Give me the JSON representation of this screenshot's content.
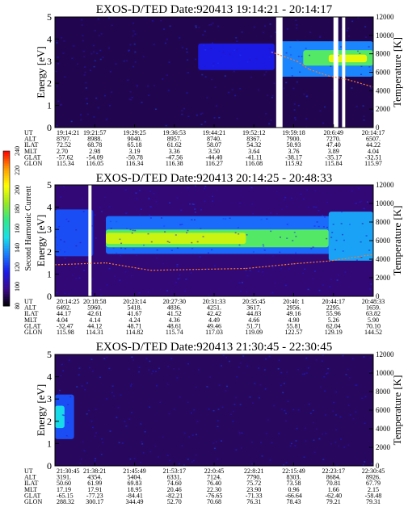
{
  "chart_data": [
    {
      "type": "heatmap",
      "title": "EXOS-D/TED   Date:920413  19:14:21 - 20:14:17",
      "ylabel": "Energy [eV]",
      "y2label": "Temperature [K]",
      "yticks": [
        "0",
        "1",
        "2",
        "3",
        "4",
        "5"
      ],
      "y2ticks": [
        "0",
        "2000",
        "4000",
        "6000",
        "8000",
        "10000",
        "12000"
      ],
      "ylim": [
        0,
        5
      ],
      "y2lim": [
        0,
        12000
      ],
      "row_labels": [
        "UT",
        "ALT",
        "ILAT",
        "MLT",
        "GLAT",
        "GLON"
      ],
      "columns": [
        [
          "19:14:21",
          "8797.",
          "72.52",
          "2.70",
          "-57.62",
          "115.34"
        ],
        [
          "19:21:57",
          "8988.",
          "68.78",
          "2.98",
          "-54.09",
          "116.05"
        ],
        [
          "19:29:25",
          "9040.",
          "65.18",
          "3.19",
          "-50.78",
          "116.34"
        ],
        [
          "19:36:53",
          "8957.",
          "61.62",
          "3.36",
          "-47.56",
          "116.38"
        ],
        [
          "19:44:21",
          "8740.",
          "58.07",
          "3.50",
          "-44.40",
          "116.27"
        ],
        [
          "19:52:12",
          "8367.",
          "54.32",
          "3.64",
          "-41.11",
          "116.08"
        ],
        [
          "19:59:18",
          "7900.",
          "50.93",
          "3.76",
          "-38.17",
          "115.92"
        ],
        [
          "20:6:49",
          "7270.",
          "47.40",
          "3.89",
          "-35.17",
          "115.84"
        ],
        [
          "20:14:17",
          "6507.",
          "44.22",
          "4.04",
          "-32.51",
          "115.97"
        ]
      ],
      "bands": [
        {
          "t0": 0.0,
          "t1": 1.0,
          "e0": 0.0,
          "e1": 5.0,
          "level": 90
        },
        {
          "t0": 0.45,
          "t1": 0.69,
          "e0": 2.6,
          "e1": 3.8,
          "level": 115
        },
        {
          "t0": 0.7,
          "t1": 1.0,
          "e0": 2.3,
          "e1": 3.9,
          "level": 135
        },
        {
          "t0": 0.78,
          "t1": 1.0,
          "e0": 2.8,
          "e1": 3.5,
          "level": 175
        },
        {
          "t0": 0.86,
          "t1": 0.98,
          "e0": 2.95,
          "e1": 3.3,
          "level": 200
        }
      ],
      "gaps": [
        [
          0.695,
          0.715
        ],
        [
          0.875,
          0.89
        ],
        [
          0.902,
          0.912
        ]
      ],
      "temperature_trace": [
        [
          0.68,
          8200
        ],
        [
          0.72,
          7700
        ],
        [
          0.76,
          7200
        ],
        [
          0.8,
          6300
        ],
        [
          0.86,
          5600
        ],
        [
          0.92,
          5200
        ],
        [
          1.0,
          4400
        ]
      ]
    },
    {
      "type": "heatmap",
      "title": "EXOS-D/TED   Date:920413  20:14:25 - 20:48:33",
      "ylabel": "Energy [eV]",
      "y2label": "Temperature [K]",
      "yticks": [
        "0",
        "1",
        "2",
        "3",
        "4",
        "5"
      ],
      "y2ticks": [
        "0",
        "2000",
        "4000",
        "6000",
        "8000",
        "10000",
        "12000"
      ],
      "ylim": [
        0,
        5
      ],
      "y2lim": [
        0,
        12000
      ],
      "row_labels": [
        "UT",
        "ALT",
        "ILAT",
        "MLT",
        "GLAT",
        "GLON"
      ],
      "columns": [
        [
          "20:14:25",
          "6492.",
          "44.17",
          "4.04",
          "-32.47",
          "115.98"
        ],
        [
          "20:18:58",
          "5960.",
          "42.61",
          "4.14",
          "44.12",
          "114.31"
        ],
        [
          "20:23:14",
          "5418.",
          "41.67",
          "4.24",
          "48.71",
          "114.82"
        ],
        [
          "20:27:30",
          "4836.",
          "41.52",
          "4.36",
          "48.61",
          "115.74"
        ],
        [
          "20:31:33",
          "4251.",
          "42.42",
          "4.49",
          "49.46",
          "117.03"
        ],
        [
          "20:35:45",
          "3617.",
          "44.83",
          "4.66",
          "51.71",
          "119.09"
        ],
        [
          "20:40: 1",
          "2956.",
          "49.16",
          "4.90",
          "55.81",
          "122.57"
        ],
        [
          "20:44:17",
          "2295.",
          "55.96",
          "5.26",
          "62.04",
          "129.19"
        ],
        [
          "20:48:33",
          "1659.",
          "63.82",
          "5.90",
          "70.10",
          "144.52"
        ]
      ],
      "bands": [
        {
          "t0": 0.0,
          "t1": 1.0,
          "e0": 0.0,
          "e1": 5.0,
          "level": 95
        },
        {
          "t0": 0.0,
          "t1": 0.12,
          "e0": 1.8,
          "e1": 3.9,
          "level": 125
        },
        {
          "t0": 0.16,
          "t1": 1.0,
          "e0": 1.9,
          "e1": 3.6,
          "level": 130
        },
        {
          "t0": 0.16,
          "t1": 0.86,
          "e0": 2.2,
          "e1": 3.0,
          "level": 175
        },
        {
          "t0": 0.16,
          "t1": 0.6,
          "e0": 2.35,
          "e1": 2.85,
          "level": 195
        },
        {
          "t0": 0.86,
          "t1": 1.0,
          "e0": 1.6,
          "e1": 3.8,
          "level": 140
        }
      ],
      "gaps": [
        [
          0.105,
          0.115
        ]
      ],
      "temperature_trace": [
        [
          0.0,
          3400
        ],
        [
          0.16,
          3600
        ],
        [
          0.3,
          2800
        ],
        [
          0.45,
          2900
        ],
        [
          0.6,
          3000
        ],
        [
          0.75,
          3500
        ],
        [
          0.86,
          3800
        ],
        [
          1.0,
          4500
        ]
      ]
    },
    {
      "type": "heatmap",
      "title": "EXOS-D/TED   Date:920413  21:30:45 - 22:30:45",
      "ylabel": "Energy [eV]",
      "y2label": "Temperature [K]",
      "yticks": [
        "0",
        "1",
        "2",
        "3",
        "4",
        "5"
      ],
      "y2ticks": [
        "0",
        "2000",
        "4000",
        "6000",
        "8000",
        "10000",
        "12000"
      ],
      "ylim": [
        0,
        5
      ],
      "y2lim": [
        0,
        12000
      ],
      "row_labels": [
        "UT",
        "ALT",
        "ILAT",
        "MLT",
        "GLAT",
        "GLON"
      ],
      "columns": [
        [
          "21:30:45",
          "3191.",
          "50.60",
          "17.19",
          "-65.15",
          "288.32"
        ],
        [
          "21:38:21",
          "4354.",
          "61.99",
          "17.91",
          "-77.23",
          "300.17"
        ],
        [
          "21:45:49",
          "5404.",
          "69.83",
          "18.95",
          "-84.41",
          "344.49"
        ],
        [
          "21:53:17",
          "6331.",
          "74.60",
          "20.46",
          "-82.21",
          "52.70"
        ],
        [
          "22:0:45",
          "7124.",
          "76.40",
          "22.30",
          "-76.65",
          "70.68"
        ],
        [
          "22:8:21",
          "7790.",
          "75.72",
          "23.90",
          "-71.33",
          "76.31"
        ],
        [
          "22:15:49",
          "8303.",
          "73.58",
          "0.96",
          "-66.64",
          "78.43"
        ],
        [
          "22:23:17",
          "8684.",
          "70.81",
          "1.66",
          "-62.40",
          "79.21"
        ],
        [
          "22:30:45",
          "8926.",
          "67.79",
          "2.15",
          "-58.48",
          "79.31"
        ]
      ],
      "bands": [
        {
          "t0": 0.0,
          "t1": 1.0,
          "e0": 0.0,
          "e1": 5.0,
          "level": 92
        },
        {
          "t0": 0.0,
          "t1": 0.06,
          "e0": 1.2,
          "e1": 3.2,
          "level": 125
        },
        {
          "t0": 0.0,
          "t1": 0.03,
          "e0": 1.7,
          "e1": 2.7,
          "level": 150
        }
      ],
      "gaps": [],
      "temperature_trace": []
    }
  ],
  "colorbar": {
    "label": "Second Harmonic Current",
    "ticks": [
      "80",
      "100",
      "120",
      "140",
      "160",
      "180",
      "200",
      "220",
      "240"
    ],
    "range": [
      80,
      240
    ],
    "stops": [
      "#000000",
      "#3b0a8c",
      "#1a1ae8",
      "#1a7cff",
      "#18e0e8",
      "#2ee88a",
      "#9ae820",
      "#ffff00",
      "#ff9a00",
      "#ff0000"
    ]
  }
}
